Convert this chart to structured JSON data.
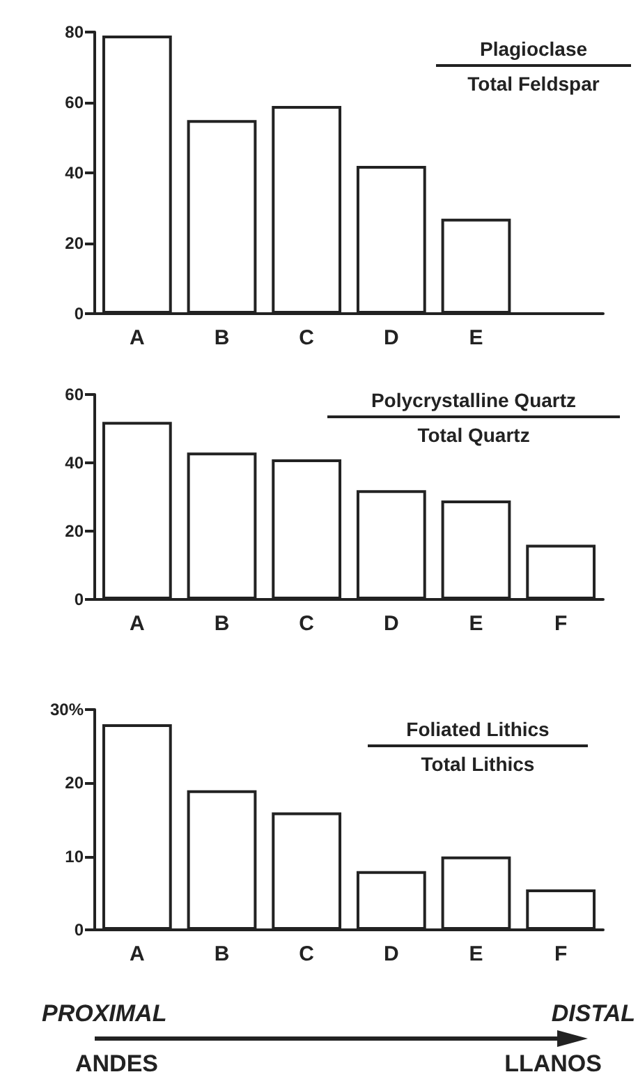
{
  "chart_data": [
    {
      "type": "bar",
      "title": "Plagioclase",
      "subtitle": "Total Feldspar",
      "categories": [
        "A",
        "B",
        "C",
        "D",
        "E",
        null
      ],
      "values": [
        79,
        55,
        59,
        42,
        27,
        null
      ],
      "color": "#ffffff",
      "ylim": [
        0,
        80
      ],
      "yticks": [
        0,
        20,
        40,
        60,
        80
      ],
      "grid": false
    },
    {
      "type": "bar",
      "title": "Polycrystalline Quartz",
      "subtitle": "Total Quartz",
      "categories": [
        "A",
        "B",
        "C",
        "D",
        "E",
        "F"
      ],
      "values": [
        52,
        43,
        41,
        32,
        29,
        16
      ],
      "color": "#ffffff",
      "ylim": [
        0,
        60
      ],
      "yticks": [
        0,
        20,
        40,
        60
      ],
      "grid": false
    },
    {
      "type": "bar",
      "title": "Foliated Lithics",
      "subtitle": "Total Lithics",
      "categories": [
        "A",
        "B",
        "C",
        "D",
        "E",
        "F"
      ],
      "values": [
        28,
        19,
        16,
        8,
        10,
        5.5
      ],
      "color": "#ffffff",
      "ylim": [
        0,
        30
      ],
      "yticks": [
        0,
        10,
        20,
        {
          "value": 30,
          "label": "30%"
        }
      ],
      "grid": false,
      "annotations": [
        "PROXIMAL",
        "DISTAL",
        "ANDES",
        "LLANOS"
      ]
    }
  ]
}
